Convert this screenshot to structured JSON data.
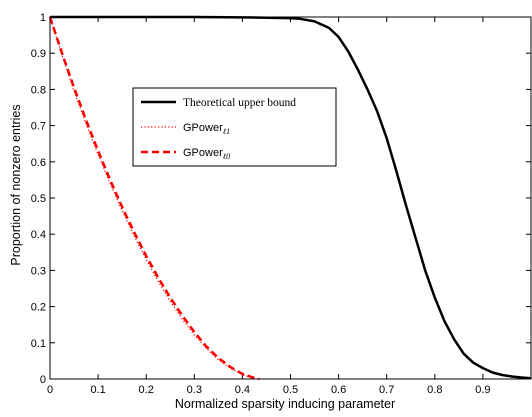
{
  "chart_data": {
    "type": "line",
    "title": "",
    "xlabel": "Normalized sparsity inducing parameter",
    "ylabel": "Proportion of nonzero entries",
    "xlim": [
      0,
      1
    ],
    "ylim": [
      0,
      1
    ],
    "x_ticks": [
      0,
      0.1,
      0.2,
      0.3,
      0.4,
      0.5,
      0.6,
      0.7,
      0.8,
      0.9
    ],
    "x_tick_labels": [
      "0",
      "0.1",
      "0.2",
      "0.3",
      "0.4",
      "0.5",
      "0.6",
      "0.7",
      "0.8",
      "0.9"
    ],
    "y_ticks": [
      0,
      0.1,
      0.2,
      0.3,
      0.4,
      0.5,
      0.6,
      0.7,
      0.8,
      0.9,
      1
    ],
    "y_tick_labels": [
      "0",
      "0.1",
      "0.2",
      "0.3",
      "0.4",
      "0.5",
      "0.6",
      "0.7",
      "0.8",
      "0.9",
      "1"
    ],
    "grid": false,
    "legend_position": "upper-middle-left",
    "series": [
      {
        "name": "Theoretical upper bound",
        "color": "#000000",
        "style": "solid",
        "x": [
          0,
          0.1,
          0.2,
          0.3,
          0.4,
          0.45,
          0.5,
          0.52,
          0.55,
          0.58,
          0.6,
          0.62,
          0.64,
          0.66,
          0.68,
          0.7,
          0.72,
          0.74,
          0.76,
          0.78,
          0.8,
          0.82,
          0.84,
          0.86,
          0.88,
          0.9,
          0.92,
          0.94,
          0.96,
          0.98,
          1.0
        ],
        "y": [
          1.0,
          1.0,
          1.0,
          1.0,
          0.999,
          0.998,
          0.997,
          0.995,
          0.988,
          0.97,
          0.945,
          0.905,
          0.855,
          0.8,
          0.74,
          0.665,
          0.575,
          0.48,
          0.39,
          0.3,
          0.225,
          0.16,
          0.11,
          0.07,
          0.045,
          0.03,
          0.018,
          0.011,
          0.007,
          0.004,
          0.002
        ]
      },
      {
        "name": "GPower",
        "name_subscript": "ℓ1",
        "color": "#ff0000",
        "style": "dotted",
        "x": [
          0,
          0.025,
          0.05,
          0.075,
          0.1,
          0.125,
          0.15,
          0.175,
          0.2,
          0.225,
          0.25,
          0.275,
          0.3,
          0.325,
          0.35,
          0.375,
          0.4,
          0.42,
          0.43
        ],
        "y": [
          1.0,
          0.895,
          0.795,
          0.705,
          0.62,
          0.54,
          0.465,
          0.395,
          0.33,
          0.27,
          0.215,
          0.165,
          0.122,
          0.085,
          0.053,
          0.03,
          0.012,
          0.004,
          0.0
        ]
      },
      {
        "name": "GPower",
        "name_subscript": "ℓ0",
        "color": "#ff0000",
        "style": "dashed",
        "x": [
          0,
          0.025,
          0.05,
          0.075,
          0.1,
          0.125,
          0.15,
          0.175,
          0.2,
          0.225,
          0.25,
          0.275,
          0.3,
          0.325,
          0.35,
          0.375,
          0.4,
          0.42,
          0.435
        ],
        "y": [
          1.0,
          0.9,
          0.805,
          0.715,
          0.63,
          0.55,
          0.475,
          0.405,
          0.34,
          0.28,
          0.225,
          0.175,
          0.13,
          0.09,
          0.058,
          0.033,
          0.014,
          0.005,
          0.0
        ]
      }
    ]
  }
}
